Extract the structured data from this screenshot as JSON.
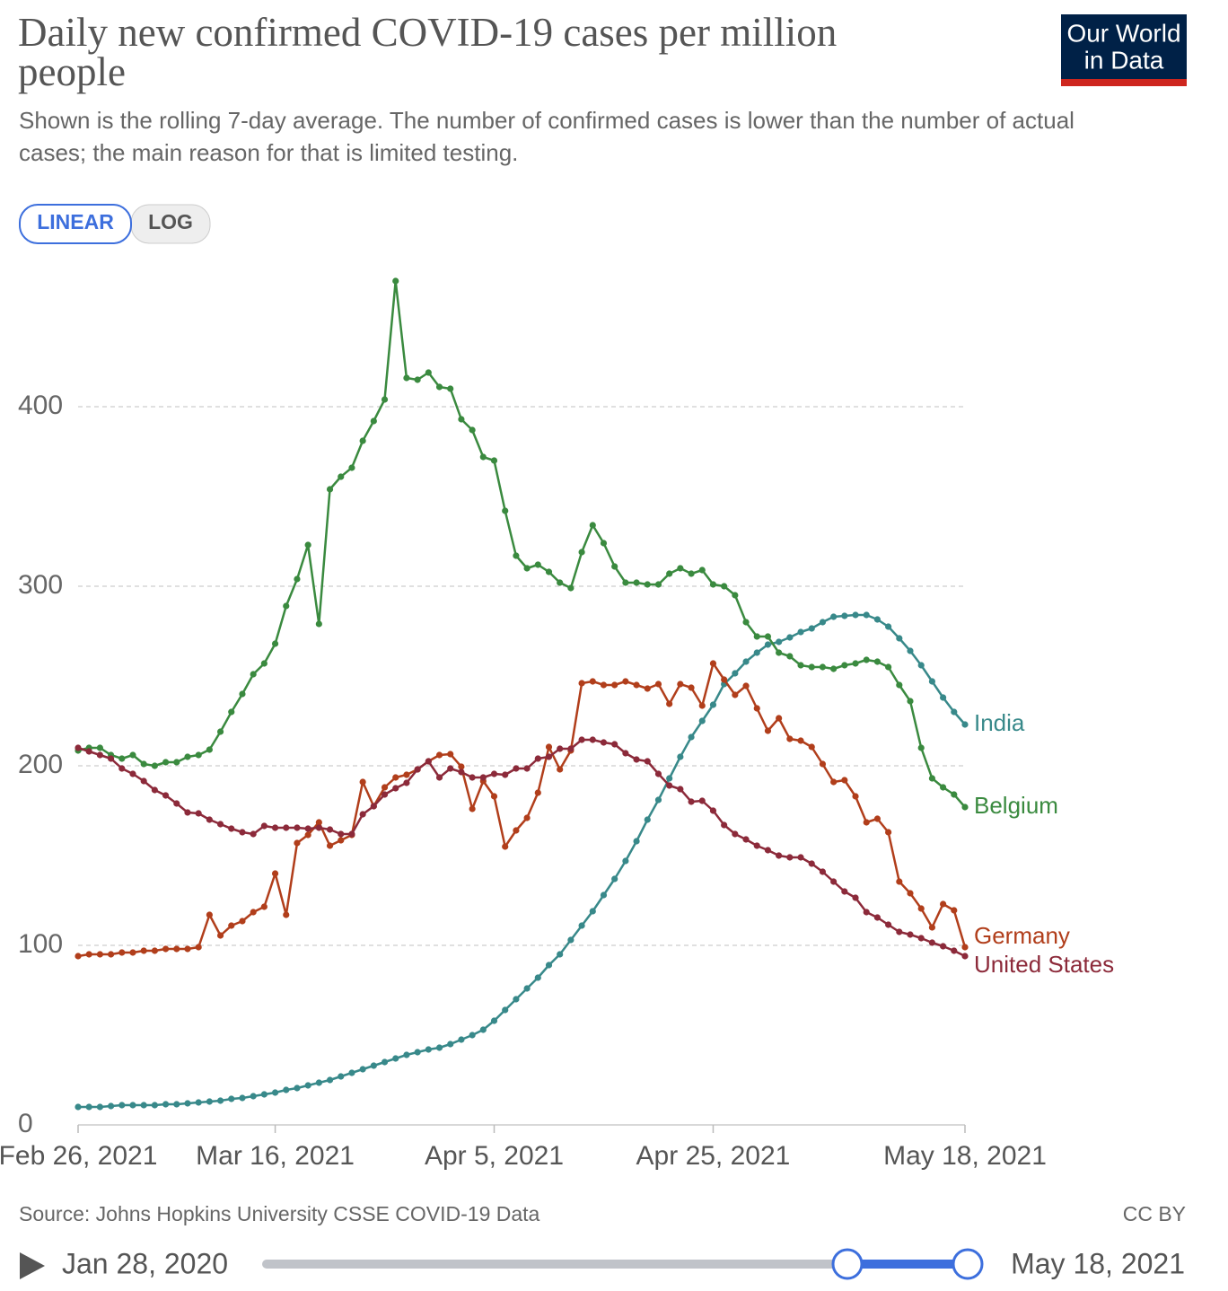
{
  "chart_data": {
    "type": "line",
    "title": "Daily new confirmed COVID-19 cases per million people",
    "subtitle": "Shown is the rolling 7-day average. The number of confirmed cases is lower than the number of actual cases; the main reason for that is limited testing.",
    "source": "Source: Johns Hopkins University CSSE COVID-19 Data",
    "license": "CC BY",
    "log_scale": false,
    "grid": true,
    "x": [
      "2021-02-26",
      "2021-02-27",
      "2021-02-28",
      "2021-03-01",
      "2021-03-02",
      "2021-03-03",
      "2021-03-04",
      "2021-03-05",
      "2021-03-06",
      "2021-03-07",
      "2021-03-08",
      "2021-03-09",
      "2021-03-10",
      "2021-03-11",
      "2021-03-12",
      "2021-03-13",
      "2021-03-14",
      "2021-03-15",
      "2021-03-16",
      "2021-03-17",
      "2021-03-18",
      "2021-03-19",
      "2021-03-20",
      "2021-03-21",
      "2021-03-22",
      "2021-03-23",
      "2021-03-24",
      "2021-03-25",
      "2021-03-26",
      "2021-03-27",
      "2021-03-28",
      "2021-03-29",
      "2021-03-30",
      "2021-03-31",
      "2021-04-01",
      "2021-04-02",
      "2021-04-03",
      "2021-04-04",
      "2021-04-05",
      "2021-04-06",
      "2021-04-07",
      "2021-04-08",
      "2021-04-09",
      "2021-04-10",
      "2021-04-11",
      "2021-04-12",
      "2021-04-13",
      "2021-04-14",
      "2021-04-15",
      "2021-04-16",
      "2021-04-17",
      "2021-04-18",
      "2021-04-19",
      "2021-04-20",
      "2021-04-21",
      "2021-04-22",
      "2021-04-23",
      "2021-04-24",
      "2021-04-25",
      "2021-04-26",
      "2021-04-27",
      "2021-04-28",
      "2021-04-29",
      "2021-04-30",
      "2021-05-01",
      "2021-05-02",
      "2021-05-03",
      "2021-05-04",
      "2021-05-05",
      "2021-05-06",
      "2021-05-07",
      "2021-05-08",
      "2021-05-09",
      "2021-05-10",
      "2021-05-11",
      "2021-05-12",
      "2021-05-13",
      "2021-05-14",
      "2021-05-15",
      "2021-05-16",
      "2021-05-17",
      "2021-05-18"
    ],
    "xlim": [
      "2021-02-26",
      "2021-05-18"
    ],
    "xticks": [
      {
        "value": "2021-02-26",
        "label": "Feb 26, 2021"
      },
      {
        "value": "2021-03-16",
        "label": "Mar 16, 2021"
      },
      {
        "value": "2021-04-05",
        "label": "Apr 5, 2021"
      },
      {
        "value": "2021-04-25",
        "label": "Apr 25, 2021"
      },
      {
        "value": "2021-05-18",
        "label": "May 18, 2021"
      }
    ],
    "ylim": [
      0,
      470
    ],
    "yticks": [
      0,
      100,
      200,
      300,
      400
    ],
    "series": [
      {
        "name": "India",
        "color": "#38898a",
        "values": [
          10,
          10,
          10,
          10.5,
          11,
          11,
          11,
          11,
          11.5,
          11.5,
          12,
          12.5,
          13,
          13.5,
          14.5,
          15,
          16,
          17,
          18,
          19.5,
          20.5,
          22,
          23.5,
          25,
          27,
          29,
          31,
          33,
          35,
          37,
          39,
          40.5,
          42,
          43,
          45,
          47.5,
          50,
          53,
          58,
          64,
          70,
          76,
          82,
          89,
          95,
          103,
          111,
          119,
          128,
          137,
          147,
          158,
          170,
          181,
          193,
          205,
          216,
          225,
          234,
          245.5,
          251.5,
          258,
          263,
          267.5,
          269,
          271.5,
          274.5,
          276.5,
          280,
          283,
          283.5,
          284,
          284,
          281.5,
          277.5,
          271,
          264,
          256,
          247,
          238,
          230,
          223
        ]
      },
      {
        "name": "Belgium",
        "color": "#3a8a3f",
        "values": [
          208.5,
          210,
          210,
          206,
          204,
          206,
          201,
          200,
          202,
          202,
          205,
          206,
          209,
          219,
          230,
          240,
          251,
          257,
          268,
          289,
          304,
          323,
          279,
          354,
          361,
          366,
          381,
          392,
          404,
          470,
          416,
          415,
          419,
          411,
          410,
          393,
          387,
          372,
          370,
          342,
          317,
          310,
          312,
          308,
          302,
          299,
          319,
          334,
          324,
          311,
          302,
          302,
          301,
          301,
          307,
          310,
          307,
          309,
          301,
          300,
          295,
          280,
          272,
          272,
          263,
          261,
          256,
          255,
          255,
          254,
          256,
          257,
          259,
          258,
          255,
          245,
          236,
          210,
          193,
          188,
          184,
          177
        ]
      },
      {
        "name": "Germany",
        "color": "#b13e1b",
        "values": [
          94,
          95,
          95,
          95,
          96,
          96,
          97,
          97,
          98,
          98,
          98,
          99,
          117,
          105.5,
          111,
          113.5,
          118.5,
          121.5,
          140,
          117,
          157,
          161.5,
          168.5,
          155.5,
          158.5,
          161.5,
          191,
          177.5,
          188,
          193.5,
          195,
          198,
          202.5,
          206,
          206.5,
          199.5,
          176,
          191.5,
          183,
          155,
          164,
          171,
          185,
          210.5,
          198,
          208.5,
          246,
          247,
          245,
          245,
          247,
          245,
          243,
          245.5,
          234.5,
          245.5,
          243.5,
          233.5,
          257,
          248,
          239.5,
          244.5,
          232,
          219.5,
          226.5,
          215,
          214,
          210.5,
          201,
          191,
          192,
          183,
          168.5,
          170.5,
          163,
          135.5,
          129,
          120.5,
          110,
          123,
          119.5,
          99
        ]
      },
      {
        "name": "United States",
        "color": "#8c2a3a",
        "values": [
          210,
          208,
          206,
          204,
          198.5,
          195.5,
          191.5,
          186.5,
          183.5,
          179,
          174,
          173.5,
          170,
          167.5,
          165,
          163,
          162,
          166.5,
          165.5,
          165.5,
          165.5,
          165,
          165.5,
          164.5,
          162,
          162,
          173,
          177.5,
          184,
          187.5,
          190.5,
          198,
          202.5,
          193.5,
          198.5,
          196.5,
          193.5,
          193.5,
          195.5,
          195,
          198.5,
          198.5,
          204,
          205,
          209.5,
          209.5,
          214.5,
          214.5,
          213,
          212,
          207,
          203.5,
          202.5,
          195.5,
          189,
          187,
          180,
          180.5,
          175,
          167,
          162,
          159,
          155.5,
          153,
          150,
          149,
          149,
          145.5,
          141,
          135.5,
          130,
          126.5,
          118.5,
          115.5,
          111.5,
          107.5,
          106,
          104,
          101.5,
          99.5,
          97,
          94
        ]
      }
    ]
  },
  "ui": {
    "logo": [
      "Our World",
      "in Data"
    ],
    "scale_buttons": [
      "LINEAR",
      "LOG"
    ],
    "timeline": {
      "start": "Jan 28, 2020",
      "end": "May 18, 2021"
    }
  }
}
